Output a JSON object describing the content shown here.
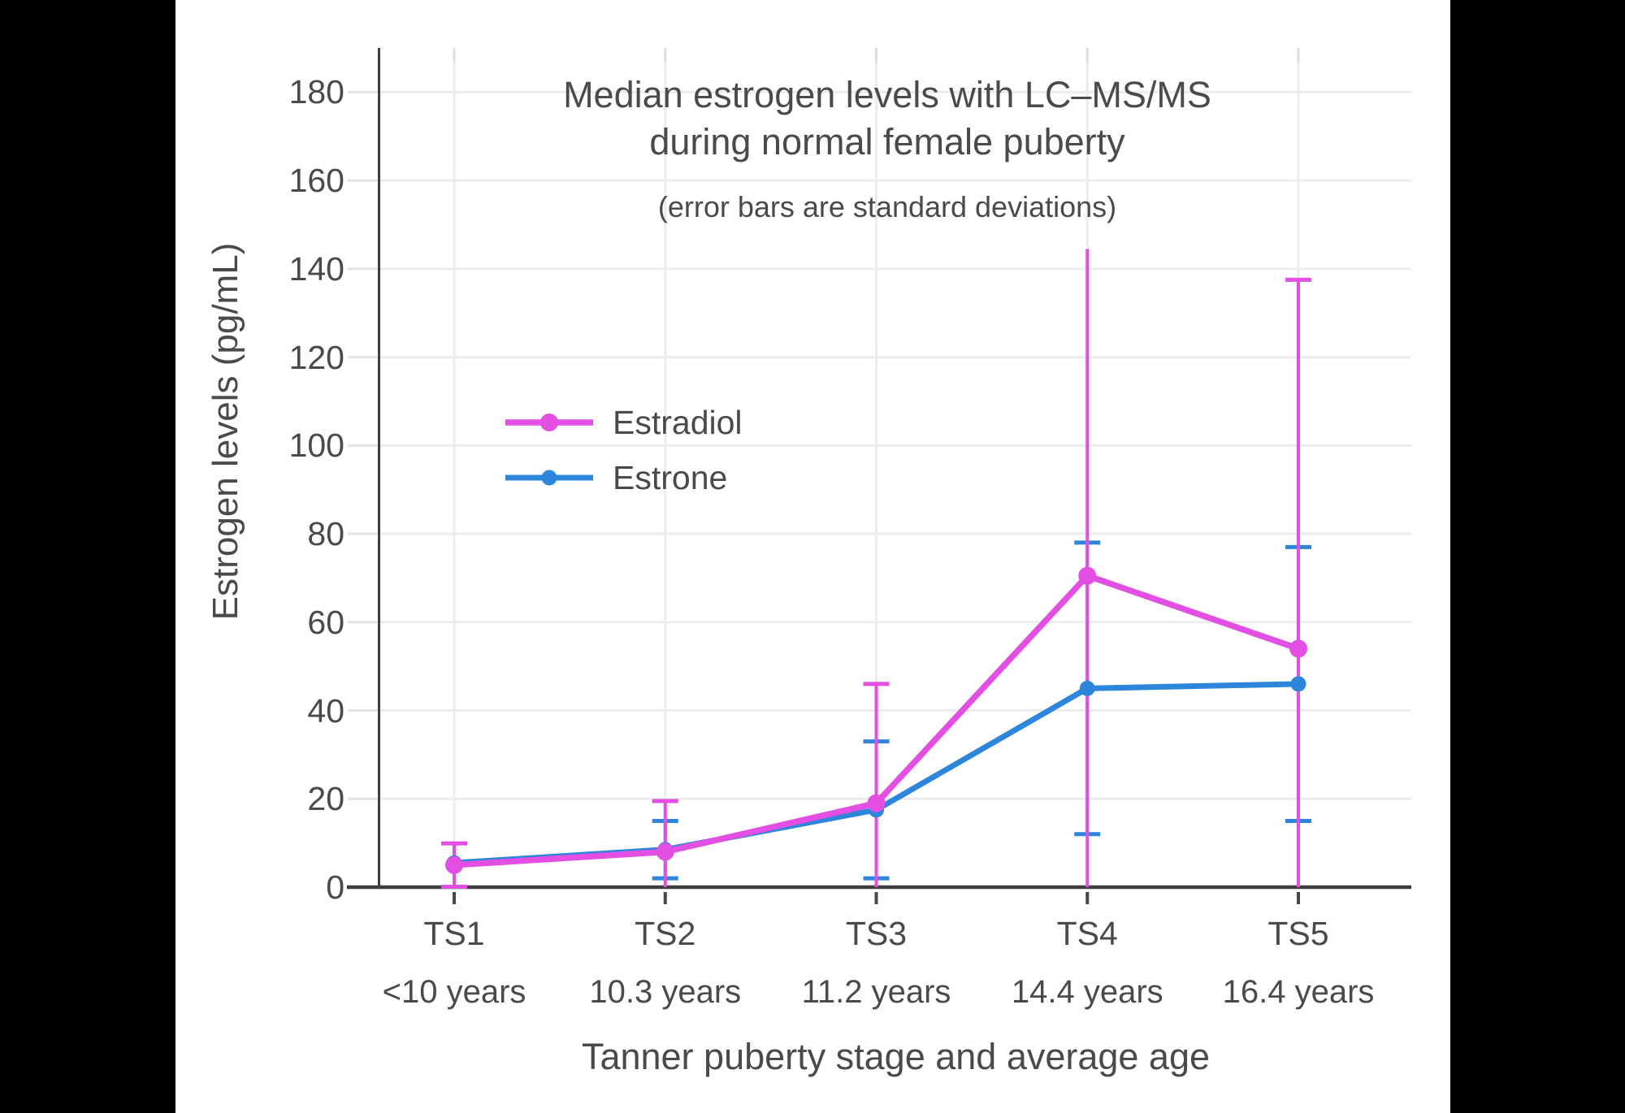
{
  "canvas": {
    "background": "#000000",
    "panel_color": "#FFFFFF"
  },
  "chart_data": {
    "type": "line",
    "title_line1": "Median estrogen levels with LC–MS/MS",
    "title_line2": "during normal female puberty",
    "subtitle": "(error bars are standard deviations)",
    "xlabel": "Tanner puberty stage and average age",
    "ylabel": "Estrogen levels (pg/mL)",
    "categories": [
      {
        "stage": "TS1",
        "age": "<10 years"
      },
      {
        "stage": "TS2",
        "age": "10.3 years"
      },
      {
        "stage": "TS3",
        "age": "11.2 years"
      },
      {
        "stage": "TS4",
        "age": "14.4 years"
      },
      {
        "stage": "TS5",
        "age": "16.4 years"
      }
    ],
    "yticks": [
      0,
      20,
      40,
      60,
      80,
      100,
      120,
      140,
      160,
      180
    ],
    "ylim": [
      0,
      190
    ],
    "grid": true,
    "legend_position": "inside-upper-left",
    "series": [
      {
        "name": "Estrone",
        "color": "#2E86DC",
        "marker": "circle",
        "values": [
          5.5,
          8.5,
          17.5,
          45,
          46
        ],
        "sd": [
          null,
          6.5,
          15.5,
          33,
          31
        ],
        "top_caps": [
          true,
          true,
          true,
          true,
          true
        ]
      },
      {
        "name": "Estradiol",
        "color": "#E24FE2",
        "marker": "circle",
        "values": [
          5,
          8,
          19,
          70.5,
          54
        ],
        "sd": [
          4.9,
          11.5,
          27,
          74,
          83.5
        ],
        "top_caps": [
          true,
          true,
          true,
          false,
          true
        ]
      }
    ],
    "legend": {
      "items": [
        {
          "label": "Estradiol"
        },
        {
          "label": "Estrone"
        }
      ]
    },
    "style": {
      "text_color": "#4A4A4A",
      "grid_color": "#ECECEC",
      "axis_color": "#3F3F3F",
      "tick_dash_color": "#E4E4E4",
      "top_tick_color": "#DEDEDE",
      "bottom_tick_color": "#474747"
    }
  }
}
